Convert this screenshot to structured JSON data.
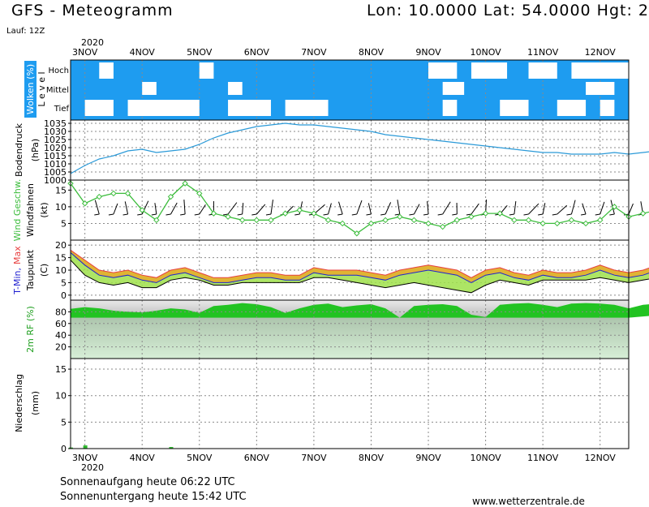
{
  "header": {
    "title": "GFS - Meteogramm",
    "location": "Lon: 10.0000 Lat: 54.0000 Hgt: 2",
    "run": "Lauf: 12Z"
  },
  "footer": {
    "sunrise": "Sonnenaufgang heute 06:22 UTC",
    "sunset": "Sonnenuntergang heute 15:42 UTC",
    "site": "www.wetterzentrale.de"
  },
  "colors": {
    "cloud_bg": "#1e9cf0",
    "pressure_line": "#2b9ad8",
    "wind_line": "#3dbd3d",
    "tmax": "#e84040",
    "tmin": "#2020d0",
    "humidity": "#22c322",
    "precip": "#2db82d"
  },
  "chart_data": {
    "x_axis": {
      "year": "2020",
      "days": [
        "3NOV",
        "4NOV",
        "5NOV",
        "6NOV",
        "7NOV",
        "8NOV",
        "9NOV",
        "10NOV",
        "11NOV",
        "12NOV"
      ],
      "start_hours_before_3nov": 6,
      "end_hours_after_12nov": 12
    },
    "panels": [
      {
        "type": "heatmap",
        "title_parts": [
          "Wolken",
          "(%)"
        ],
        "level_word": "Level",
        "levels": [
          "Hoch",
          "Mittel",
          "Tief"
        ],
        "clouds": [
          {
            "level": "Hoch",
            "start": "3NOV 06",
            "end": "3NOV 12"
          },
          {
            "level": "Hoch",
            "start": "5NOV 00",
            "end": "5NOV 06"
          },
          {
            "level": "Hoch",
            "start": "9NOV 00",
            "end": "9NOV 12"
          },
          {
            "level": "Hoch",
            "start": "9NOV 18",
            "end": "10NOV 09"
          },
          {
            "level": "Hoch",
            "start": "10NOV 18",
            "end": "11NOV 06"
          },
          {
            "level": "Hoch",
            "start": "11NOV 12",
            "end": "12NOV 12"
          },
          {
            "level": "Mittel",
            "start": "4NOV 00",
            "end": "4NOV 06"
          },
          {
            "level": "Mittel",
            "start": "5NOV 12",
            "end": "5NOV 18"
          },
          {
            "level": "Mittel",
            "start": "9NOV 06",
            "end": "9NOV 15"
          },
          {
            "level": "Mittel",
            "start": "11NOV 18",
            "end": "12NOV 06"
          },
          {
            "level": "Tief",
            "start": "3NOV 00",
            "end": "3NOV 12"
          },
          {
            "level": "Tief",
            "start": "3NOV 18",
            "end": "5NOV 00"
          },
          {
            "level": "Tief",
            "start": "5NOV 12",
            "end": "6NOV 06"
          },
          {
            "level": "Tief",
            "start": "6NOV 12",
            "end": "7NOV 06"
          },
          {
            "level": "Tief",
            "start": "9NOV 06",
            "end": "9NOV 12"
          },
          {
            "level": "Tief",
            "start": "10NOV 06",
            "end": "10NOV 18"
          },
          {
            "level": "Tief",
            "start": "11NOV 06",
            "end": "11NOV 18"
          },
          {
            "level": "Tief",
            "start": "12NOV 00",
            "end": "12NOV 06"
          }
        ]
      },
      {
        "type": "line",
        "ylabel": "Bodendruck",
        "unit": "(hPa)",
        "yticks": [
          1000,
          1005,
          1010,
          1015,
          1020,
          1025,
          1030,
          1035
        ],
        "ylim": [
          1000,
          1037
        ],
        "step_hours": 6,
        "values": [
          1004,
          1009,
          1013,
          1015,
          1018,
          1019,
          1017,
          1018,
          1019,
          1022,
          1026,
          1029,
          1031,
          1033,
          1034,
          1035,
          1034,
          1034,
          1033,
          1032,
          1031,
          1030,
          1028,
          1027,
          1026,
          1025,
          1024,
          1023,
          1022,
          1021,
          1020,
          1019,
          1018,
          1017,
          1017,
          1016,
          1016,
          1016,
          1017,
          1016,
          1017,
          1018,
          1019,
          1018,
          1017,
          1016,
          1016,
          1018,
          1019,
          1020
        ]
      },
      {
        "type": "line",
        "ylabel": "Wind Geschw.",
        "ylabel2": "Windfahnen",
        "unit": "(kt)",
        "yticks": [
          5,
          10,
          15
        ],
        "ylim": [
          0,
          18
        ],
        "step_hours": 6,
        "values": [
          17,
          11,
          13,
          14,
          14,
          9,
          6,
          13,
          17,
          14,
          8,
          7,
          6,
          6,
          6,
          8,
          9,
          8,
          6,
          5,
          2,
          5,
          6,
          7,
          6,
          5,
          4,
          6,
          7,
          8,
          8,
          6,
          6,
          5,
          5,
          6,
          5,
          6,
          10,
          7,
          8,
          9,
          11,
          12,
          9,
          8,
          6,
          7,
          8,
          7
        ]
      },
      {
        "type": "area",
        "ylabel_parts": [
          "T-Min,",
          "Max"
        ],
        "ylabel2": "Taupunkt",
        "unit": "(C)",
        "yticks": [
          0,
          5,
          10,
          15,
          20
        ],
        "ylim": [
          -2,
          22
        ],
        "step_hours": 6,
        "tmax": [
          18,
          14,
          10,
          9,
          10,
          8,
          7,
          10,
          11,
          9,
          7,
          7,
          8,
          9,
          9,
          8,
          8,
          11,
          10,
          10,
          10,
          9,
          8,
          10,
          11,
          12,
          11,
          10,
          7,
          10,
          11,
          9,
          8,
          10,
          9,
          9,
          10,
          12,
          10,
          9,
          10,
          12,
          11,
          10,
          9,
          7,
          8,
          9,
          9,
          10
        ],
        "tmin": [
          17,
          12,
          8,
          7,
          8,
          6,
          5,
          8,
          9,
          7,
          5,
          5,
          6,
          7,
          7,
          6,
          6,
          9,
          8,
          8,
          8,
          7,
          6,
          8,
          9,
          10,
          9,
          8,
          5,
          8,
          9,
          7,
          6,
          8,
          7,
          7,
          8,
          10,
          8,
          7,
          8,
          10,
          9,
          8,
          7,
          5,
          6,
          7,
          7,
          8
        ],
        "dewpoint": [
          14,
          8,
          5,
          4,
          5,
          3,
          3,
          6,
          7,
          6,
          4,
          4,
          5,
          5,
          5,
          5,
          5,
          7,
          7,
          6,
          5,
          4,
          3,
          4,
          5,
          4,
          3,
          2,
          1,
          4,
          6,
          5,
          4,
          6,
          6,
          6,
          6,
          7,
          6,
          5,
          6,
          7,
          7,
          6,
          5,
          4,
          4,
          5,
          5,
          6
        ]
      },
      {
        "type": "area",
        "ylabel": "2m RF (%)",
        "yticks": [
          20,
          40,
          60,
          80
        ],
        "ylim": [
          0,
          100
        ],
        "step_hours": 6,
        "values": [
          85,
          88,
          86,
          82,
          80,
          79,
          82,
          86,
          84,
          78,
          90,
          92,
          95,
          93,
          88,
          78,
          86,
          92,
          94,
          88,
          91,
          93,
          86,
          70,
          90,
          92,
          93,
          90,
          75,
          71,
          92,
          94,
          95,
          92,
          88,
          94,
          95,
          94,
          92,
          86,
          92,
          94,
          93,
          89,
          90,
          86,
          88,
          92,
          94,
          90
        ]
      },
      {
        "type": "bar",
        "ylabel": "Niederschlag",
        "unit": "(mm)",
        "yticks": [
          0,
          5,
          10,
          15
        ],
        "ylim": [
          0,
          17
        ],
        "step_hours": 6,
        "values": [
          0.2,
          0.6,
          0,
          0,
          0,
          0,
          0,
          0.3,
          0,
          0,
          0,
          0,
          0,
          0,
          0,
          0,
          0,
          0,
          0,
          0,
          0,
          0,
          0,
          0,
          0,
          0,
          0,
          0,
          0,
          0,
          0,
          0,
          0,
          0,
          0,
          0,
          0,
          0,
          0,
          0,
          0,
          0,
          0,
          0,
          0,
          0.6,
          0.5,
          0.3,
          0,
          0
        ]
      }
    ]
  }
}
